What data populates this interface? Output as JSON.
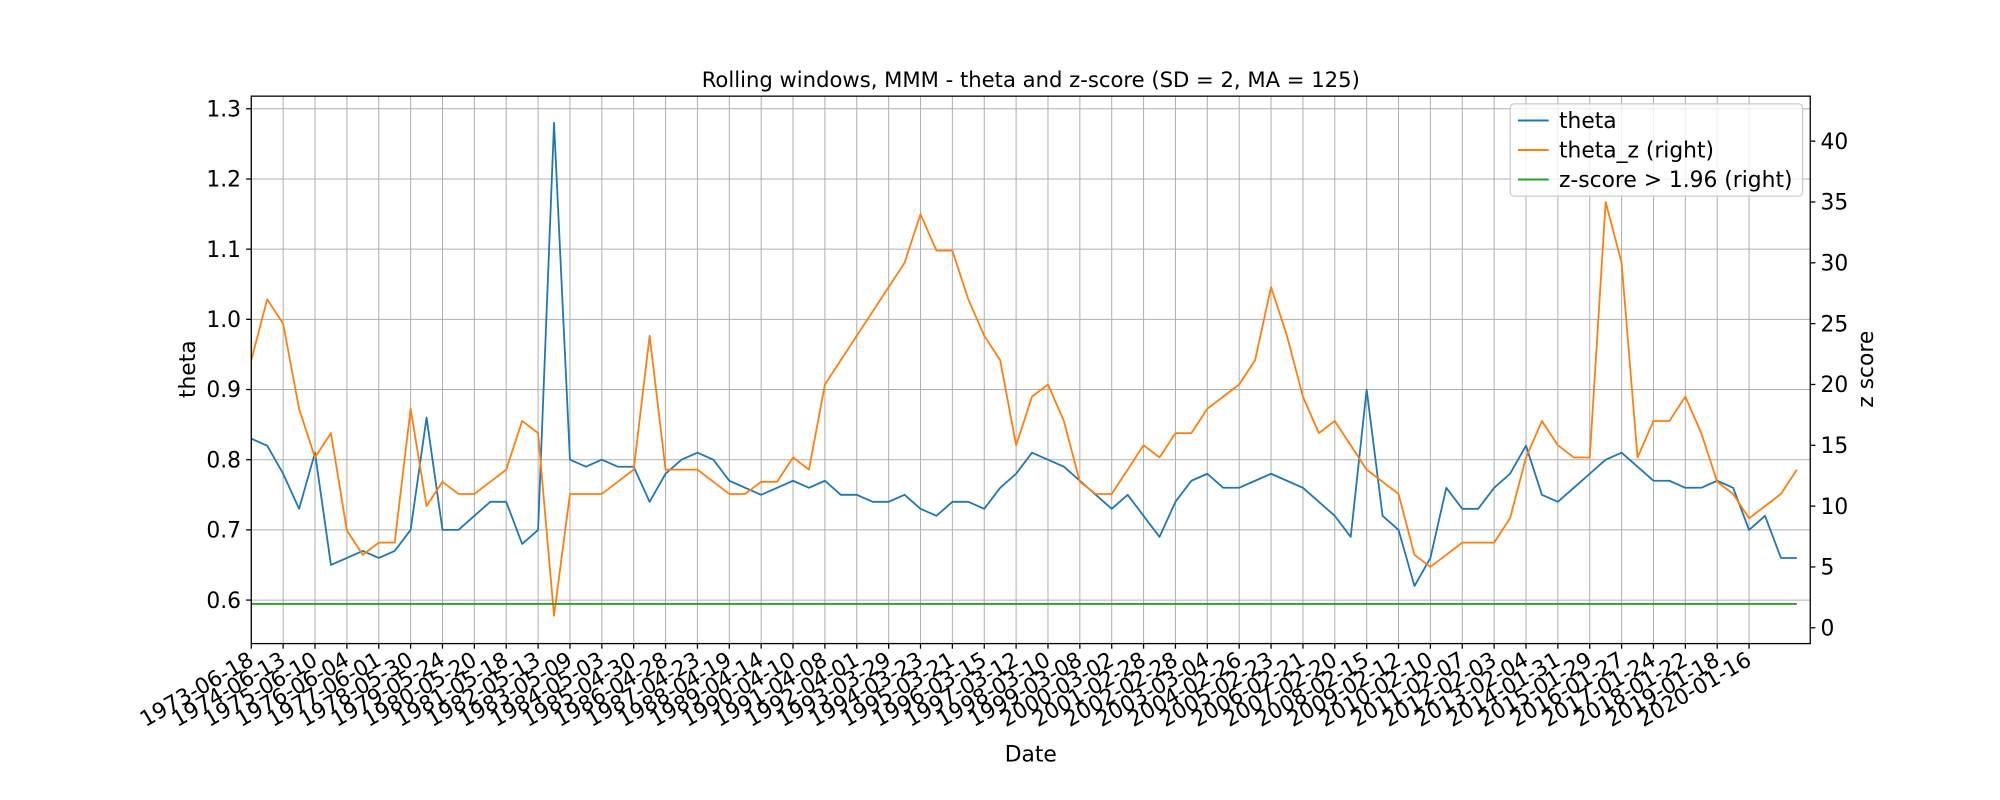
{
  "chart_data": {
    "type": "line",
    "title": "Rolling windows, MMM - theta and z-score (SD = 2, MA = 125)",
    "xlabel": "Date",
    "ylabel": "theta",
    "y2label": "z score",
    "grid": true,
    "legend": "upper right",
    "xlim": [
      0,
      12230
    ],
    "xticks": [
      {
        "value": 0,
        "label": "1973-06-18"
      },
      {
        "value": 250,
        "label": "1974-06-13"
      },
      {
        "value": 500,
        "label": "1975-06-10"
      },
      {
        "value": 750,
        "label": "1976-06-04"
      },
      {
        "value": 1000,
        "label": "1977-06-01"
      },
      {
        "value": 1250,
        "label": "1978-05-30"
      },
      {
        "value": 1500,
        "label": "1979-05-24"
      },
      {
        "value": 1750,
        "label": "1980-05-20"
      },
      {
        "value": 2000,
        "label": "1981-05-18"
      },
      {
        "value": 2250,
        "label": "1982-05-13"
      },
      {
        "value": 2500,
        "label": "1983-05-09"
      },
      {
        "value": 2750,
        "label": "1984-05-03"
      },
      {
        "value": 3000,
        "label": "1985-04-30"
      },
      {
        "value": 3250,
        "label": "1986-04-28"
      },
      {
        "value": 3500,
        "label": "1987-04-23"
      },
      {
        "value": 3750,
        "label": "1988-04-19"
      },
      {
        "value": 4000,
        "label": "1989-04-14"
      },
      {
        "value": 4250,
        "label": "1990-04-10"
      },
      {
        "value": 4500,
        "label": "1991-04-08"
      },
      {
        "value": 4750,
        "label": "1992-04-01"
      },
      {
        "value": 5000,
        "label": "1993-03-29"
      },
      {
        "value": 5250,
        "label": "1994-03-23"
      },
      {
        "value": 5500,
        "label": "1995-03-21"
      },
      {
        "value": 5750,
        "label": "1996-03-15"
      },
      {
        "value": 6000,
        "label": "1997-03-12"
      },
      {
        "value": 6250,
        "label": "1998-03-10"
      },
      {
        "value": 6500,
        "label": "1999-03-08"
      },
      {
        "value": 6750,
        "label": "2000-03-02"
      },
      {
        "value": 7000,
        "label": "2001-02-28"
      },
      {
        "value": 7250,
        "label": "2002-02-28"
      },
      {
        "value": 7500,
        "label": "2003-03-04"
      },
      {
        "value": 7750,
        "label": "2004-02-26"
      },
      {
        "value": 8000,
        "label": "2005-02-23"
      },
      {
        "value": 8250,
        "label": "2006-02-21"
      },
      {
        "value": 8500,
        "label": "2007-02-20"
      },
      {
        "value": 8750,
        "label": "2008-02-15"
      },
      {
        "value": 9000,
        "label": "2009-02-12"
      },
      {
        "value": 9250,
        "label": "2010-02-10"
      },
      {
        "value": 9500,
        "label": "2011-02-07"
      },
      {
        "value": 9750,
        "label": "2012-02-03"
      },
      {
        "value": 10000,
        "label": "2013-02-04"
      },
      {
        "value": 10250,
        "label": "2014-01-31"
      },
      {
        "value": 10500,
        "label": "2015-01-29"
      },
      {
        "value": 10750,
        "label": "2016-01-27"
      },
      {
        "value": 11000,
        "label": "2017-01-24"
      },
      {
        "value": 11250,
        "label": "2018-01-22"
      },
      {
        "value": 11500,
        "label": "2019-01-18"
      },
      {
        "value": 11750,
        "label": "2020-01-16"
      }
    ],
    "ylim": [
      0.538,
      1.318
    ],
    "yticks": [
      0.6,
      0.7,
      0.8,
      0.9,
      {
        "value": 1,
        "label": "1.0"
      },
      1.1,
      1.2,
      1.3
    ],
    "y2lim": [
      -1.3,
      43.7
    ],
    "y2ticks": [
      0,
      5,
      10,
      15,
      20,
      25,
      30,
      35,
      40
    ],
    "x": [
      0,
      125,
      250,
      375,
      500,
      625,
      750,
      875,
      1000,
      1125,
      1250,
      1375,
      1500,
      1625,
      1750,
      1875,
      2000,
      2125,
      2250,
      2375,
      2500,
      2625,
      2750,
      2875,
      3000,
      3125,
      3250,
      3375,
      3500,
      3625,
      3750,
      3875,
      4000,
      4125,
      4250,
      4375,
      4500,
      4625,
      4750,
      4875,
      5000,
      5125,
      5250,
      5375,
      5500,
      5625,
      5750,
      5875,
      6000,
      6125,
      6250,
      6375,
      6500,
      6625,
      6750,
      6875,
      7000,
      7125,
      7250,
      7375,
      7500,
      7625,
      7750,
      7875,
      8000,
      8125,
      8250,
      8375,
      8500,
      8625,
      8750,
      8875,
      9000,
      9125,
      9250,
      9375,
      9500,
      9625,
      9750,
      9875,
      10000,
      10125,
      10250,
      10375,
      10500,
      10625,
      10750,
      10875,
      11000,
      11125,
      11250,
      11375,
      11500,
      11625,
      11750,
      11875,
      12000,
      12125
    ],
    "series": [
      {
        "name": "theta",
        "color": "#1f77b4",
        "axis": "y",
        "values": [
          0.83,
          0.82,
          0.78,
          0.73,
          0.81,
          0.65,
          0.66,
          0.67,
          0.66,
          0.67,
          0.7,
          0.86,
          0.7,
          0.7,
          0.72,
          0.74,
          0.74,
          0.68,
          0.7,
          1.28,
          0.8,
          0.79,
          0.8,
          0.79,
          0.79,
          0.74,
          0.78,
          0.8,
          0.81,
          0.8,
          0.77,
          0.76,
          0.75,
          0.76,
          0.77,
          0.76,
          0.77,
          0.75,
          0.75,
          0.74,
          0.74,
          0.75,
          0.73,
          0.72,
          0.74,
          0.74,
          0.73,
          0.76,
          0.78,
          0.81,
          0.8,
          0.79,
          0.77,
          0.75,
          0.73,
          0.75,
          0.72,
          0.69,
          0.74,
          0.77,
          0.78,
          0.76,
          0.76,
          0.77,
          0.78,
          0.77,
          0.76,
          0.74,
          0.72,
          0.69,
          0.9,
          0.72,
          0.7,
          0.62,
          0.66,
          0.76,
          0.73,
          0.73,
          0.76,
          0.78,
          0.82,
          0.75,
          0.74,
          0.76,
          0.78,
          0.8,
          0.81,
          0.79,
          0.77,
          0.77,
          0.76,
          0.76,
          0.77,
          0.76,
          0.7,
          0.72,
          0.66,
          0.66
        ]
      },
      {
        "name": "theta_z (right)",
        "color": "#ff7f0e",
        "axis": "y2",
        "values": [
          22,
          27,
          25,
          18,
          14,
          16,
          8,
          6,
          7,
          7,
          18,
          10,
          12,
          11,
          11,
          12,
          13,
          17,
          16,
          1,
          11,
          11,
          11,
          12,
          13,
          24,
          13,
          13,
          13,
          12,
          11,
          11,
          12,
          12,
          14,
          13,
          20,
          22,
          24,
          26,
          28,
          30,
          34,
          31,
          31,
          27,
          24,
          22,
          15,
          19,
          20,
          17,
          12,
          11,
          11,
          13,
          15,
          14,
          16,
          16,
          18,
          19,
          20,
          22,
          28,
          24,
          19,
          16,
          17,
          15,
          13,
          12,
          11,
          6,
          5,
          6,
          7,
          7,
          7,
          9,
          14,
          17,
          15,
          14,
          14,
          35,
          30,
          14,
          17,
          17,
          19,
          16,
          12,
          11,
          9,
          10,
          11,
          13
        ]
      },
      {
        "name": "z-score > 1.96 (right)",
        "color": "#2ca02c",
        "axis": "y2",
        "values": [
          1.96,
          1.96,
          1.96,
          1.96,
          1.96,
          1.96,
          1.96,
          1.96,
          1.96,
          1.96,
          1.96,
          1.96,
          1.96,
          1.96,
          1.96,
          1.96,
          1.96,
          1.96,
          1.96,
          1.96,
          1.96,
          1.96,
          1.96,
          1.96,
          1.96,
          1.96,
          1.96,
          1.96,
          1.96,
          1.96,
          1.96,
          1.96,
          1.96,
          1.96,
          1.96,
          1.96,
          1.96,
          1.96,
          1.96,
          1.96,
          1.96,
          1.96,
          1.96,
          1.96,
          1.96,
          1.96,
          1.96,
          1.96,
          1.96,
          1.96,
          1.96,
          1.96,
          1.96,
          1.96,
          1.96,
          1.96,
          1.96,
          1.96,
          1.96,
          1.96,
          1.96,
          1.96,
          1.96,
          1.96,
          1.96,
          1.96,
          1.96,
          1.96,
          1.96,
          1.96,
          1.96,
          1.96,
          1.96,
          1.96,
          1.96,
          1.96,
          1.96,
          1.96,
          1.96,
          1.96,
          1.96,
          1.96,
          1.96,
          1.96,
          1.96,
          1.96,
          1.96,
          1.96,
          1.96,
          1.96,
          1.96,
          1.96,
          1.96,
          1.96,
          1.96,
          1.96,
          1.96,
          1.96
        ]
      }
    ]
  }
}
